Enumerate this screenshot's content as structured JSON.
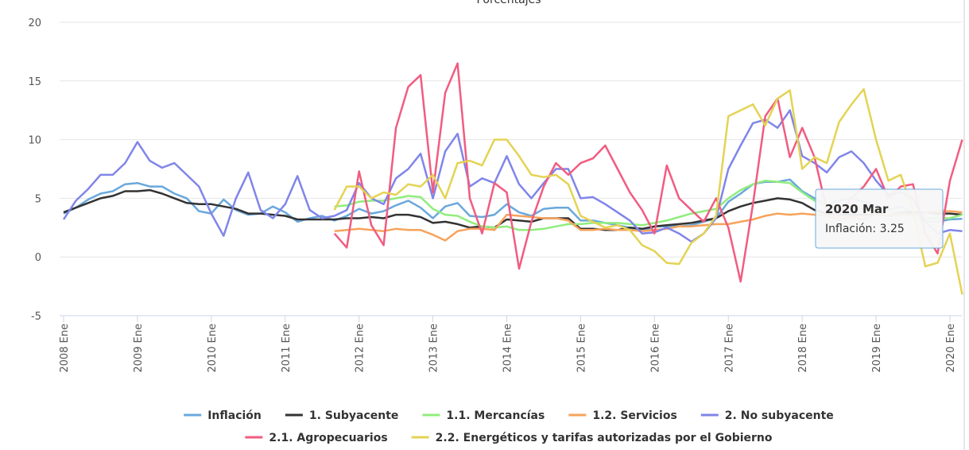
{
  "chart_data": {
    "type": "line",
    "title": "Porcentajes",
    "categories": [
      "2008 Ene",
      null,
      null,
      null,
      null,
      null,
      "2009 Ene",
      null,
      null,
      null,
      null,
      null,
      "2010 Ene",
      null,
      null,
      null,
      null,
      null,
      "2011 Ene",
      null,
      null,
      null,
      null,
      null,
      "2012 Ene",
      null,
      null,
      null,
      null,
      null,
      "2013 Ene",
      null,
      null,
      null,
      null,
      null,
      "2014 Ene",
      null,
      null,
      null,
      null,
      null,
      "2015 Ene",
      null,
      null,
      null,
      null,
      null,
      "2016 Ene",
      null,
      null,
      null,
      null,
      null,
      "2017 Ene",
      null,
      null,
      null,
      null,
      null,
      "2018 Ene",
      null,
      null,
      null,
      null,
      null,
      "2019 Ene",
      null,
      null,
      null,
      null,
      null,
      "2020 Ene",
      null
    ],
    "ylim": [
      -5,
      20
    ],
    "yticks": [
      -5,
      0,
      5,
      10,
      15,
      20
    ],
    "grid": true,
    "series": [
      {
        "name": "Inflación",
        "color": "#6aa8dc",
        "values": [
          3.7,
          4.2,
          4.9,
          5.4,
          5.6,
          6.2,
          6.3,
          6.0,
          6.0,
          5.4,
          5.0,
          3.9,
          3.7,
          4.9,
          4.0,
          3.6,
          3.7,
          4.3,
          3.8,
          3.0,
          3.3,
          3.5,
          3.1,
          3.5,
          4.1,
          3.7,
          3.9,
          4.4,
          4.8,
          4.2,
          3.3,
          4.3,
          4.6,
          3.5,
          3.4,
          3.6,
          4.5,
          3.8,
          3.5,
          4.1,
          4.2,
          4.2,
          3.1,
          3.1,
          2.9,
          2.7,
          2.5,
          2.2,
          2.6,
          2.6,
          2.6,
          2.7,
          3.0,
          3.3,
          4.7,
          5.4,
          6.2,
          6.4,
          6.4,
          6.6,
          5.6,
          5.0,
          4.5,
          4.8,
          5.0,
          4.7,
          4.4,
          4.0,
          4.3,
          3.8,
          3.0,
          3.0,
          3.2,
          3.25
        ]
      },
      {
        "name": "1. Subyacente",
        "color": "#333333",
        "values": [
          3.8,
          4.2,
          4.6,
          5.0,
          5.2,
          5.6,
          5.6,
          5.7,
          5.4,
          5.0,
          4.6,
          4.5,
          4.5,
          4.3,
          4.1,
          3.7,
          3.7,
          3.6,
          3.5,
          3.2,
          3.2,
          3.2,
          3.2,
          3.3,
          3.3,
          3.4,
          3.3,
          3.6,
          3.6,
          3.4,
          2.9,
          3.0,
          2.8,
          2.5,
          2.6,
          2.5,
          3.2,
          3.1,
          3.0,
          3.3,
          3.3,
          3.3,
          2.4,
          2.4,
          2.3,
          2.3,
          2.5,
          2.4,
          2.6,
          2.7,
          2.8,
          2.9,
          3.1,
          3.3,
          3.9,
          4.3,
          4.6,
          4.8,
          5.0,
          4.9,
          4.6,
          4.0,
          3.7,
          3.6,
          3.6,
          3.6,
          3.6,
          3.6,
          3.8,
          3.8,
          3.8,
          3.7,
          3.7,
          3.6
        ]
      },
      {
        "name": "1.1. Mercancías",
        "color": "#90ed7d",
        "values": [
          null,
          null,
          null,
          null,
          null,
          null,
          null,
          null,
          null,
          null,
          null,
          null,
          null,
          null,
          null,
          null,
          null,
          null,
          null,
          null,
          null,
          null,
          4.3,
          4.4,
          4.7,
          4.8,
          4.8,
          5.0,
          5.2,
          5.1,
          4.1,
          3.6,
          3.5,
          3.0,
          2.6,
          2.5,
          2.6,
          2.3,
          2.3,
          2.4,
          2.6,
          2.8,
          2.8,
          2.9,
          2.9,
          2.9,
          2.8,
          2.7,
          2.9,
          3.1,
          3.4,
          3.7,
          3.9,
          4.1,
          5.0,
          5.7,
          6.2,
          6.5,
          6.4,
          6.3,
          5.5,
          4.8,
          4.5,
          4.4,
          4.3,
          4.1,
          3.8,
          3.6,
          3.7,
          3.6,
          3.3,
          3.3,
          3.3,
          3.6
        ]
      },
      {
        "name": "1.2. Servicios",
        "color": "#f7a35c",
        "values": [
          null,
          null,
          null,
          null,
          null,
          null,
          null,
          null,
          null,
          null,
          null,
          null,
          null,
          null,
          null,
          null,
          null,
          null,
          null,
          null,
          null,
          null,
          2.2,
          2.3,
          2.4,
          2.3,
          2.2,
          2.4,
          2.3,
          2.3,
          1.9,
          1.4,
          2.2,
          2.4,
          2.4,
          2.3,
          3.6,
          3.5,
          3.4,
          3.3,
          3.3,
          3.1,
          2.3,
          2.3,
          2.4,
          2.3,
          2.3,
          2.2,
          2.3,
          2.4,
          2.6,
          2.6,
          2.7,
          2.8,
          2.8,
          3.0,
          3.2,
          3.5,
          3.7,
          3.6,
          3.7,
          3.6,
          3.5,
          3.2,
          3.4,
          3.2,
          3.6,
          3.5,
          3.6,
          3.6,
          3.8,
          3.9,
          3.9,
          3.8
        ]
      },
      {
        "name": "2. No subyacente",
        "color": "#8085e9",
        "values": [
          3.2,
          4.8,
          5.8,
          7.0,
          7.0,
          8.0,
          9.8,
          8.2,
          7.6,
          8.0,
          7.0,
          6.0,
          3.7,
          1.8,
          5.0,
          7.2,
          4.0,
          3.3,
          4.5,
          6.9,
          4.0,
          3.3,
          3.5,
          4.0,
          6.3,
          5.0,
          4.5,
          6.7,
          7.5,
          8.8,
          5.0,
          9.0,
          10.5,
          6.0,
          6.7,
          6.3,
          8.6,
          6.2,
          5.0,
          6.3,
          7.5,
          7.5,
          5.0,
          5.1,
          4.5,
          3.8,
          3.1,
          2.0,
          2.1,
          2.5,
          2.0,
          1.3,
          2.0,
          3.3,
          7.5,
          9.5,
          11.4,
          11.7,
          11.0,
          12.5,
          8.6,
          8.0,
          7.2,
          8.5,
          9.0,
          8.0,
          6.5,
          5.3,
          5.5,
          5.0,
          3.0,
          2.0,
          2.3,
          2.2
        ]
      },
      {
        "name": "2.1. Agropecuarios",
        "color": "#f15c80",
        "values": [
          null,
          null,
          null,
          null,
          null,
          null,
          null,
          null,
          null,
          null,
          null,
          null,
          null,
          null,
          null,
          null,
          null,
          null,
          null,
          null,
          null,
          null,
          2.0,
          0.8,
          7.3,
          2.7,
          1.0,
          11.0,
          14.5,
          15.5,
          5.5,
          14.0,
          16.5,
          5.0,
          2.0,
          6.3,
          5.5,
          -1.0,
          3.0,
          6.0,
          8.0,
          7.0,
          8.0,
          8.4,
          9.5,
          7.5,
          5.5,
          4.0,
          2.0,
          7.8,
          5.0,
          4.0,
          3.0,
          5.0,
          2.5,
          -2.1,
          4.5,
          12.0,
          13.5,
          8.5,
          11.0,
          8.5,
          4.0,
          3.5,
          5.0,
          6.0,
          7.5,
          5.0,
          6.0,
          6.2,
          2.0,
          0.3,
          6.5,
          10.0
        ]
      },
      {
        "name": "2.2. Energéticos y tarifas autorizadas por el Gobierno",
        "color": "#e4d354",
        "values": [
          null,
          null,
          null,
          null,
          null,
          null,
          null,
          null,
          null,
          null,
          null,
          null,
          null,
          null,
          null,
          null,
          null,
          null,
          null,
          null,
          null,
          null,
          4.0,
          6.0,
          6.0,
          5.0,
          5.5,
          5.3,
          6.2,
          6.0,
          7.0,
          5.0,
          8.0,
          8.2,
          7.8,
          10.0,
          10.0,
          8.6,
          7.0,
          6.8,
          7.0,
          6.2,
          3.5,
          3.0,
          2.5,
          2.7,
          2.3,
          1.0,
          0.5,
          -0.5,
          -0.6,
          1.2,
          2.0,
          3.5,
          12.0,
          12.5,
          13.0,
          11.2,
          13.5,
          14.2,
          7.5,
          8.5,
          8.0,
          11.5,
          13.0,
          14.3,
          10.0,
          6.5,
          7.0,
          4.0,
          -0.8,
          -0.5,
          2.0,
          -3.2
        ]
      }
    ],
    "tooltip": {
      "title": "2020 Mar",
      "label": "Inflación: 3.25"
    }
  }
}
